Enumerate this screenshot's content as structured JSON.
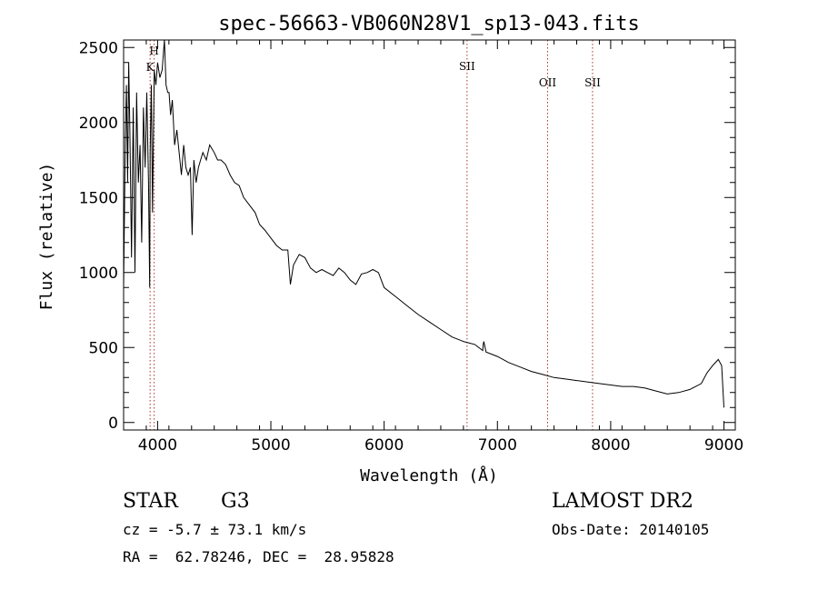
{
  "chart_data": {
    "type": "line",
    "title": "spec-56663-VB060N28V1_sp13-043.fits",
    "xlabel": "Wavelength (Å)",
    "ylabel": "Flux (relative)",
    "xlim": [
      3700,
      9100
    ],
    "ylim": [
      -50,
      2550
    ],
    "xticks": [
      4000,
      5000,
      6000,
      7000,
      8000,
      9000
    ],
    "yticks": [
      0,
      500,
      1000,
      1500,
      2000,
      2500
    ],
    "grid": false,
    "lines": [
      {
        "label": "H",
        "x": 3970
      },
      {
        "label": "K",
        "x": 3934
      },
      {
        "label": "SII",
        "x": 6732
      },
      {
        "label": "OII",
        "x": 7443
      },
      {
        "label": "SII",
        "x": 7840
      }
    ],
    "series": [
      {
        "x": [
          3700,
          3715,
          3725,
          3735,
          3745,
          3755,
          3770,
          3785,
          3800,
          3815,
          3830,
          3845,
          3860,
          3875,
          3890,
          3905,
          3920,
          3930,
          3934,
          3945,
          3955,
          3970,
          3985,
          4000,
          4020,
          4040,
          4060,
          4075,
          4090,
          4101,
          4115,
          4130,
          4150,
          4170,
          4190,
          4210,
          4230,
          4250,
          4270,
          4290,
          4305,
          4320,
          4340,
          4360,
          4380,
          4400,
          4430,
          4460,
          4500,
          4530,
          4560,
          4600,
          4640,
          4680,
          4720,
          4760,
          4800,
          4861,
          4900,
          4950,
          5000,
          5050,
          5100,
          5150,
          5172,
          5200,
          5250,
          5300,
          5350,
          5400,
          5450,
          5500,
          5550,
          5600,
          5650,
          5700,
          5750,
          5800,
          5850,
          5900,
          5950,
          6000,
          6100,
          6200,
          6300,
          6400,
          6500,
          6600,
          6700,
          6800,
          6870,
          6875,
          6880,
          6900,
          7000,
          7100,
          7200,
          7300,
          7400,
          7500,
          7600,
          7700,
          7800,
          7900,
          8000,
          8100,
          8200,
          8300,
          8400,
          8500,
          8600,
          8700,
          8800,
          8850,
          8900,
          8950,
          8980,
          9000
        ],
        "values": [
          900,
          1900,
          2250,
          1600,
          2400,
          1950,
          1100,
          2100,
          1000,
          2200,
          1600,
          1850,
          1200,
          2100,
          1700,
          2200,
          1600,
          900,
          1800,
          2250,
          1400,
          2350,
          2250,
          2400,
          2300,
          2350,
          2550,
          2250,
          2200,
          2200,
          2050,
          2150,
          1850,
          1950,
          1800,
          1650,
          1850,
          1700,
          1650,
          1700,
          1250,
          1750,
          1600,
          1700,
          1750,
          1800,
          1750,
          1850,
          1800,
          1750,
          1750,
          1720,
          1650,
          1600,
          1580,
          1500,
          1460,
          1400,
          1320,
          1280,
          1230,
          1180,
          1150,
          1150,
          920,
          1050,
          1120,
          1100,
          1030,
          1000,
          1020,
          1000,
          980,
          1030,
          1000,
          950,
          920,
          990,
          1000,
          1020,
          1000,
          900,
          840,
          780,
          720,
          670,
          620,
          570,
          540,
          520,
          480,
          520,
          540,
          470,
          440,
          400,
          370,
          340,
          320,
          300,
          290,
          280,
          270,
          260,
          250,
          240,
          240,
          230,
          210,
          190,
          200,
          220,
          260,
          330,
          380,
          420,
          380,
          100
        ]
      }
    ]
  },
  "info": {
    "object_class": "STAR",
    "subclass": "G3",
    "survey": "LAMOST DR2",
    "cz": "cz = -5.7 ± 73.1 km/s",
    "obs_date": "Obs-Date: 20140105",
    "coords": "RA =  62.78246, DEC =  28.95828"
  }
}
